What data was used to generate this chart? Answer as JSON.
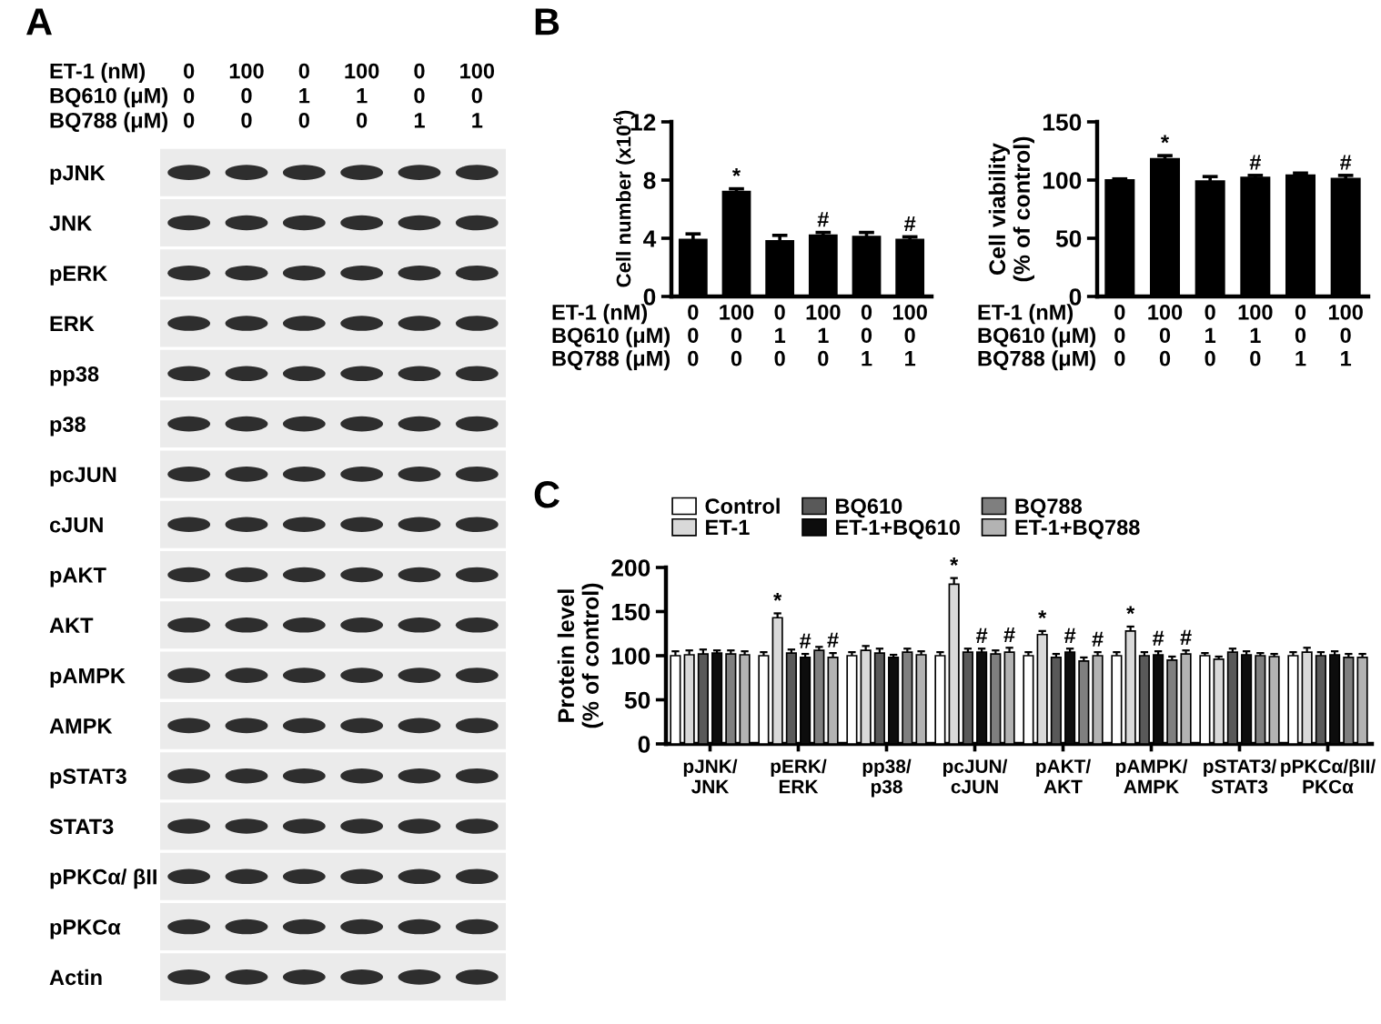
{
  "chart_data": [
    {
      "type": "other",
      "title": "A",
      "xlabel": "ET-1 (nM)\nBQ610 (μM)\nBQ788 (μM)",
      "categories": [
        "0\n0\n0",
        "100\n0\n0",
        "0\n1\n0",
        "100\n1\n0",
        "0\n0\n1",
        "100\n0\n1"
      ],
      "y_categories": [
        "pJNK",
        "JNK",
        "pERK",
        "ERK",
        "pp38",
        "p38",
        "pcJUN",
        "cJUN",
        "pAKT",
        "AKT",
        "pAMPK",
        "AMPK",
        "pSTAT3",
        "STAT3",
        "pPKCα/ βII",
        "pPKCα",
        "Actin"
      ]
    },
    {
      "type": "bar",
      "title": "B",
      "ylabel": "Cell number (x10$^{4}$)",
      "xlabel": "ET-1 (nM)\nBQ610 (μM)\nBQ788 (μM)",
      "categories": [
        "0\n0\n0",
        "100\n0\n0",
        "0\n1\n0",
        "100\n1\n0",
        "0\n0\n1",
        "100\n0\n1"
      ],
      "values": [
        3.9,
        7.2,
        3.8,
        4.2,
        4.1,
        3.9
      ],
      "errors": [
        0.4,
        0.2,
        0.4,
        0.2,
        0.3,
        0.2
      ],
      "value_labels": [
        null,
        "*",
        null,
        "#",
        null,
        "#"
      ],
      "color": "#000000",
      "ylim": [
        0,
        12
      ],
      "yticks": [
        0,
        4,
        8,
        12
      ]
    },
    {
      "type": "bar",
      "ylabel": "Cell viability\n(% of control)",
      "xlabel": "ET-1 (nM)\nBQ610 (μM)\nBQ788 (μM)",
      "categories": [
        "0\n0\n0",
        "100\n0\n0",
        "0\n1\n0",
        "100\n1\n0",
        "0\n0\n1",
        "100\n0\n1"
      ],
      "values": [
        100,
        118,
        99,
        102,
        104,
        101
      ],
      "errors": [
        1,
        3,
        4,
        2,
        2,
        3
      ],
      "value_labels": [
        null,
        "*",
        null,
        "#",
        null,
        "#"
      ],
      "color": "#000000",
      "ylim": [
        0,
        150
      ],
      "yticks": [
        0,
        50,
        100,
        150
      ]
    },
    {
      "type": "bar",
      "title": "C",
      "ylabel": "Protein level\n(% of control)",
      "categories": [
        "pJNK/\nJNK",
        "pERK/\nERK",
        "pp38/\np38",
        "pcJUN/\ncJUN",
        "pAKT/\nAKT",
        "pAMPK/\nAMPK",
        "pSTAT3/\nSTAT3",
        "pPKCα/βII/\nPKCα"
      ],
      "series": [
        {
          "name": "Control",
          "color": "#ffffff",
          "values": [
            100,
            100,
            100,
            100,
            100,
            100,
            100,
            100
          ],
          "errors": [
            5,
            4,
            4,
            4,
            4,
            4,
            3,
            4
          ]
        },
        {
          "name": "ET-1",
          "color": "#d9d9d9",
          "values": [
            101,
            143,
            106,
            181,
            124,
            128,
            96,
            104
          ],
          "errors": [
            5,
            5,
            5,
            7,
            4,
            5,
            3,
            5
          ],
          "value_labels": [
            null,
            "*",
            null,
            "*",
            "*",
            "*",
            null,
            null
          ]
        },
        {
          "name": "BQ610",
          "color": "#595959",
          "values": [
            102,
            103,
            103,
            104,
            98,
            100,
            104,
            100
          ],
          "errors": [
            5,
            4,
            5,
            4,
            4,
            4,
            4,
            4
          ]
        },
        {
          "name": "ET-1+BQ610",
          "color": "#0d0d0d",
          "values": [
            103,
            98,
            98,
            104,
            104,
            101,
            101,
            101
          ],
          "errors": [
            3,
            4,
            3,
            4,
            4,
            4,
            4,
            4
          ],
          "value_labels": [
            null,
            "#",
            null,
            "#",
            "#",
            "#",
            null,
            null
          ]
        },
        {
          "name": "BQ788",
          "color": "#7f7f7f",
          "values": [
            102,
            106,
            104,
            102,
            94,
            95,
            100,
            98
          ],
          "errors": [
            4,
            4,
            4,
            4,
            4,
            4,
            3,
            4
          ]
        },
        {
          "name": "ET-1+BQ788",
          "color": "#b3b3b3",
          "values": [
            101,
            98,
            101,
            104,
            100,
            102,
            99,
            98
          ],
          "errors": [
            4,
            5,
            4,
            5,
            4,
            4,
            3,
            4
          ],
          "value_labels": [
            null,
            "#",
            null,
            "#",
            "#",
            "#",
            null,
            null
          ]
        }
      ],
      "ylim": [
        0,
        200
      ],
      "yticks": [
        0,
        50,
        100,
        150,
        200
      ],
      "legend": "top"
    }
  ]
}
